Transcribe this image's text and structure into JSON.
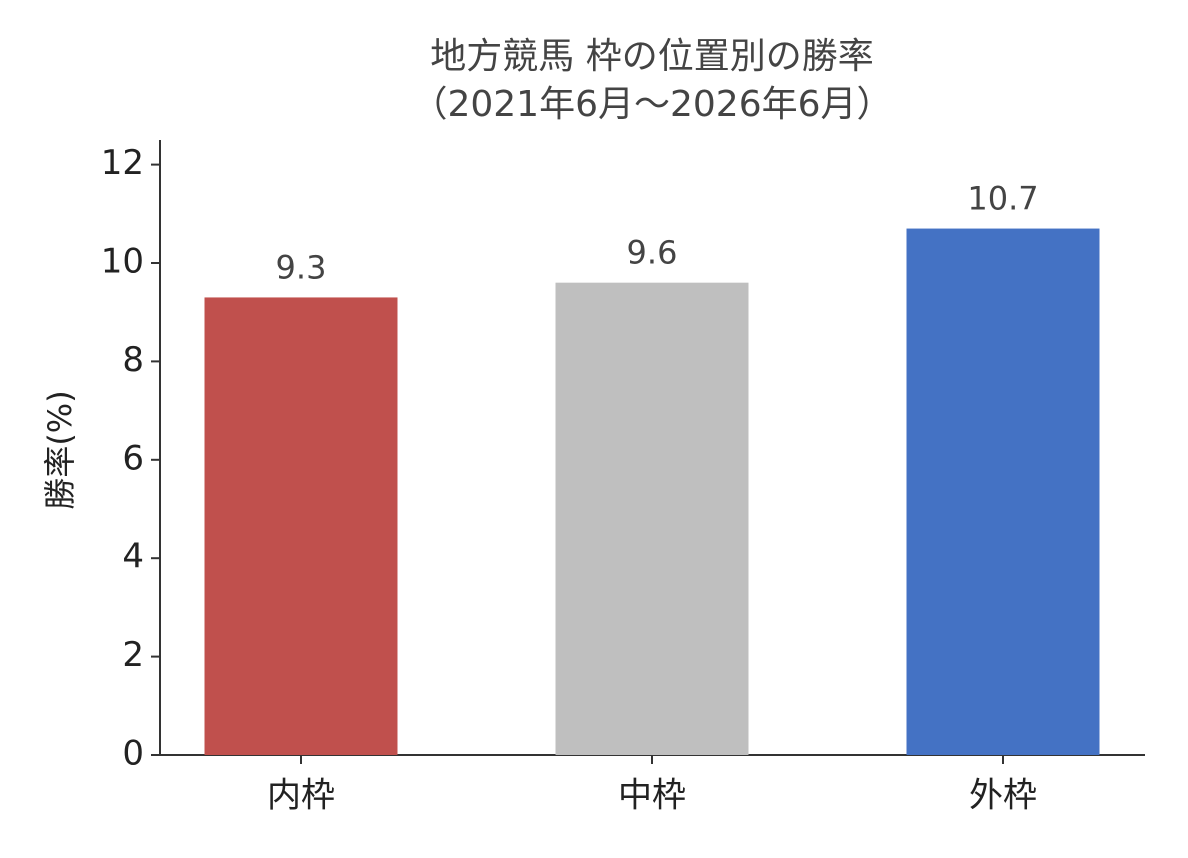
{
  "chart_data": {
    "type": "bar",
    "title": "地方競馬 枠の位置別の勝率",
    "subtitle": "（2021年6月～2026年6月）",
    "y_label": "勝率(%)",
    "categories": [
      "内枠",
      "中枠",
      "外枠"
    ],
    "values": [
      9.3,
      9.6,
      10.7
    ],
    "colors": [
      "#c0504d",
      "#bfbfbf",
      "#4472c4"
    ],
    "ylim": [
      0,
      12.5
    ],
    "yticks": [
      0,
      2,
      4,
      6,
      8,
      10,
      12
    ],
    "grid": false
  }
}
